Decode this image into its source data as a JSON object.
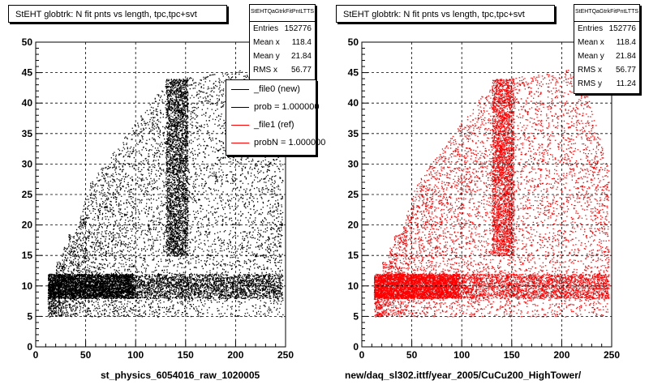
{
  "chart_data": [
    {
      "type": "scatter",
      "title": "StEHT globtrk: N fit pnts vs length, tpc,tpc+svt",
      "xlabel": "st_physics_6054016_raw_1020005",
      "ylabel": "",
      "xlim": [
        0,
        250
      ],
      "ylim": [
        0,
        50
      ],
      "x_ticks": [
        "0",
        "50",
        "100",
        "150",
        "200",
        "250"
      ],
      "y_ticks": [
        "0",
        "5",
        "10",
        "15",
        "20",
        "25",
        "30",
        "35",
        "40",
        "45",
        "50"
      ],
      "grid": true,
      "color": "#000000",
      "stats": {
        "name": "StEHTQaGtrkFitPntLTTS",
        "rows": [
          {
            "label": "Entries",
            "value": "152776"
          },
          {
            "label": "Mean x",
            "value": "118.4"
          },
          {
            "label": "Mean y",
            "value": "21.84"
          },
          {
            "label": "RMS x",
            "value": "56.77"
          }
        ]
      },
      "legend": {
        "placement": "top-right",
        "entries": [
          {
            "label": "_file0 (new)",
            "color": "#000000"
          },
          {
            "label": "prob = 1.000000",
            "color": "#000000"
          },
          {
            "label": "_file1 (ref)",
            "color": "#ff0000"
          },
          {
            "label": "probN = 1.000000",
            "color": "#ff0000"
          }
        ]
      }
    },
    {
      "type": "scatter",
      "title": "StEHT globtrk: N fit pnts vs length, tpc,tpc+svt",
      "xlabel": "new/daq_sl302.ittf/year_2005/CuCu200_HighTower/",
      "ylabel": "",
      "xlim": [
        0,
        250
      ],
      "ylim": [
        0,
        50
      ],
      "x_ticks": [
        "0",
        "50",
        "100",
        "150",
        "200",
        "250"
      ],
      "y_ticks": [
        "0",
        "5",
        "10",
        "15",
        "20",
        "25",
        "30",
        "35",
        "40",
        "45",
        "50"
      ],
      "grid": true,
      "color": "#ff0000",
      "stats": {
        "name": "StEHTQaGtrkFitPntLTTS",
        "rows": [
          {
            "label": "Entries",
            "value": "152776"
          },
          {
            "label": "Mean x",
            "value": "118.4"
          },
          {
            "label": "Mean y",
            "value": "21.84"
          },
          {
            "label": "RMS x",
            "value": "56.77"
          },
          {
            "label": "RMS y",
            "value": "11.24"
          }
        ]
      }
    }
  ]
}
